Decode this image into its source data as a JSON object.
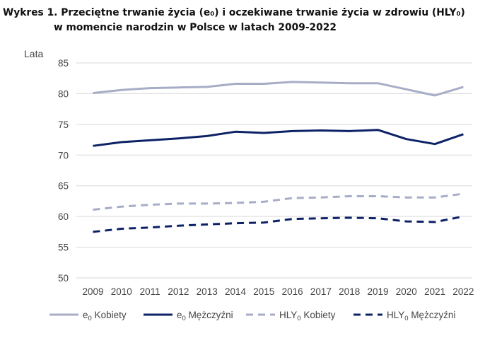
{
  "title": {
    "line1": "Wykres 1. Przeciętne trwanie życia (e₀) i oczekiwane trwanie życia w zdrowiu (HLY₀)",
    "line2": "w momencie narodzin w Polsce w latach 2009-2022"
  },
  "colors": {
    "light_series": "#a7adc7",
    "dark_series": "#0d2266",
    "grid": "#d9d9d9",
    "text": "#444444"
  },
  "chart_data": {
    "type": "line",
    "title": "Przeciętne trwanie życia (e₀) i oczekiwane trwanie życia w zdrowiu (HLY₀) w momencie narodzin w Polsce w latach 2009-2022",
    "ylabel": "Lata",
    "xlabel": "",
    "ylim": [
      50,
      85
    ],
    "yticks": [
      50,
      55,
      60,
      65,
      70,
      75,
      80,
      85
    ],
    "grid": true,
    "legend_position": "bottom",
    "categories": [
      "2009",
      "2010",
      "2011",
      "2012",
      "2013",
      "2014",
      "2015",
      "2016",
      "2017",
      "2018",
      "2019",
      "2020",
      "2021",
      "2022"
    ],
    "series": [
      {
        "key": "e0_kobiety",
        "name_main": "e",
        "name_sub": "0",
        "name_rest": " Kobiety",
        "color": "#a7adc7",
        "dashed": false,
        "values": [
          80.1,
          80.6,
          80.9,
          81.0,
          81.1,
          81.6,
          81.6,
          81.9,
          81.8,
          81.7,
          81.7,
          80.7,
          79.7,
          81.1
        ]
      },
      {
        "key": "e0_mezczyzni",
        "name_main": "e",
        "name_sub": "0",
        "name_rest": " Mężczyźni",
        "color": "#0d2266",
        "dashed": false,
        "values": [
          71.5,
          72.1,
          72.4,
          72.7,
          73.1,
          73.8,
          73.6,
          73.9,
          74.0,
          73.9,
          74.1,
          72.6,
          71.8,
          73.4
        ]
      },
      {
        "key": "hly0_kobiety",
        "name_main": "HLY",
        "name_sub": "0",
        "name_rest": " Kobiety",
        "color": "#a7adc7",
        "dashed": true,
        "values": [
          61.1,
          61.6,
          61.9,
          62.1,
          62.1,
          62.2,
          62.4,
          63.0,
          63.1,
          63.3,
          63.3,
          63.1,
          63.1,
          63.7
        ]
      },
      {
        "key": "hly0_mezczyzni",
        "name_main": "HLY",
        "name_sub": "0",
        "name_rest": " Mężczyźni",
        "color": "#0d2266",
        "dashed": true,
        "values": [
          57.5,
          58.0,
          58.2,
          58.5,
          58.7,
          58.9,
          59.0,
          59.6,
          59.7,
          59.8,
          59.7,
          59.2,
          59.1,
          60.0
        ]
      }
    ]
  }
}
